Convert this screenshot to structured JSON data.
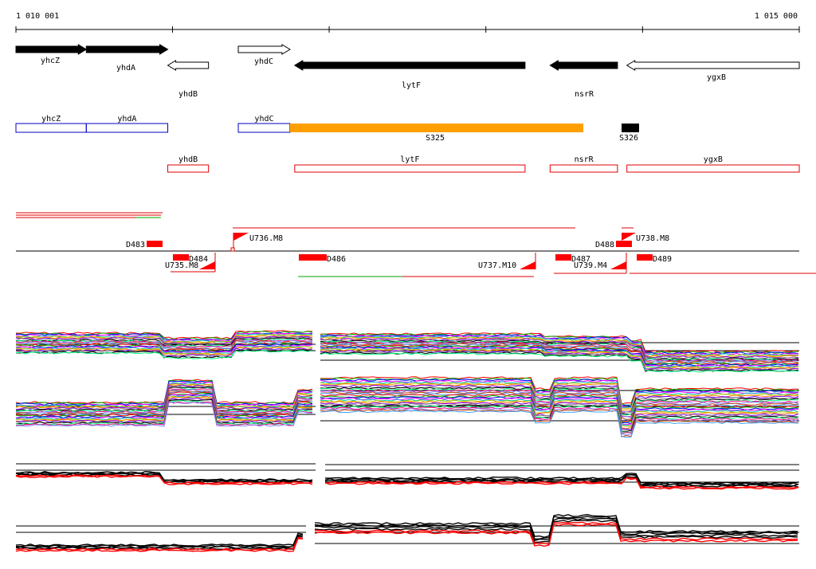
{
  "ruler": {
    "start_label": "1 010 001",
    "end_label": "1 015 000",
    "start_bp": 1010001,
    "end_bp": 1015000
  },
  "genes": [
    {
      "name": "yhcZ",
      "start_bp": 1010001,
      "end_bp": 1010450,
      "strand": "+",
      "style": "filled"
    },
    {
      "name": "yhdA",
      "start_bp": 1010450,
      "end_bp": 1010970,
      "strand": "+",
      "style": "filled"
    },
    {
      "name": "yhdB",
      "start_bp": 1010970,
      "end_bp": 1011230,
      "strand": "-",
      "style": "outline"
    },
    {
      "name": "yhdC",
      "start_bp": 1011420,
      "end_bp": 1011750,
      "strand": "+",
      "style": "outline"
    },
    {
      "name": "lytF",
      "start_bp": 1011780,
      "end_bp": 1013250,
      "strand": "-",
      "style": "filled"
    },
    {
      "name": "nsrR",
      "start_bp": 1013410,
      "end_bp": 1013840,
      "strand": "-",
      "style": "filled"
    },
    {
      "name": "ygxB",
      "start_bp": 1013900,
      "end_bp": 1015000,
      "strand": "-",
      "style": "outline"
    }
  ],
  "colors": {
    "plus_transcript": "#0000c0",
    "minus_transcript": "#e00000",
    "segment_orange": "#ffa000",
    "segment_black": "#000000",
    "feature_red": "#ff0000"
  },
  "plus_transcripts": [
    {
      "label": "yhcZ",
      "start_bp": 1010001,
      "end_bp": 1010450
    },
    {
      "label": "yhdA",
      "start_bp": 1010450,
      "end_bp": 1010970
    },
    {
      "label": "yhdC",
      "start_bp": 1011420,
      "end_bp": 1011750
    }
  ],
  "segments": [
    {
      "label": "S325",
      "start_bp": 1011750,
      "end_bp": 1013620,
      "color": "orange"
    },
    {
      "label": "S326",
      "start_bp": 1013870,
      "end_bp": 1013980,
      "color": "black"
    }
  ],
  "minus_transcripts": [
    {
      "label": "yhdB",
      "start_bp": 1010970,
      "end_bp": 1011230
    },
    {
      "label": "lytF",
      "start_bp": 1011780,
      "end_bp": 1013250
    },
    {
      "label": "nsrR",
      "start_bp": 1013410,
      "end_bp": 1013840
    },
    {
      "label": "ygxB",
      "start_bp": 1013900,
      "end_bp": 1015000
    }
  ],
  "features": {
    "up_labels": [
      "D483",
      "U736.M8",
      "D488",
      "U738.M8"
    ],
    "down_labels": [
      "D484",
      "U735.M8",
      "D486",
      "U737.M10",
      "D487",
      "U739.M4",
      "D489"
    ]
  }
}
